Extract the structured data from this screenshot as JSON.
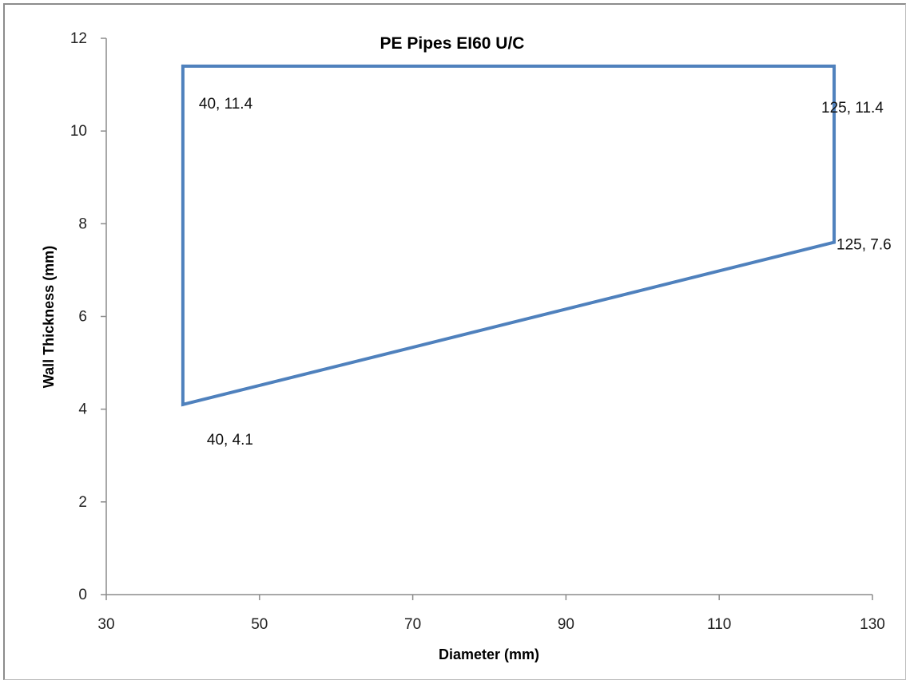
{
  "chart_data": {
    "type": "scatter",
    "title": "PE Pipes EI60 U/C",
    "xlabel": "Diameter (mm)",
    "ylabel": "Wall Thickness (mm)",
    "xlim": [
      30,
      130
    ],
    "ylim": [
      0,
      12
    ],
    "x_ticks": [
      "30",
      "50",
      "70",
      "90",
      "110",
      "130"
    ],
    "y_ticks": [
      "0",
      "2",
      "4",
      "6",
      "8",
      "10",
      "12"
    ],
    "grid": false,
    "legend": "none",
    "series": [
      {
        "color": "#4f81bd",
        "points": [
          {
            "x": 40,
            "y": 4.1,
            "label": "40, 4.1"
          },
          {
            "x": 40,
            "y": 11.4,
            "label": "40, 11.4"
          },
          {
            "x": 125,
            "y": 11.4,
            "label": "125, 11.4"
          },
          {
            "x": 125,
            "y": 7.6,
            "label": "125, 7.6"
          }
        ],
        "closed": true
      }
    ]
  }
}
